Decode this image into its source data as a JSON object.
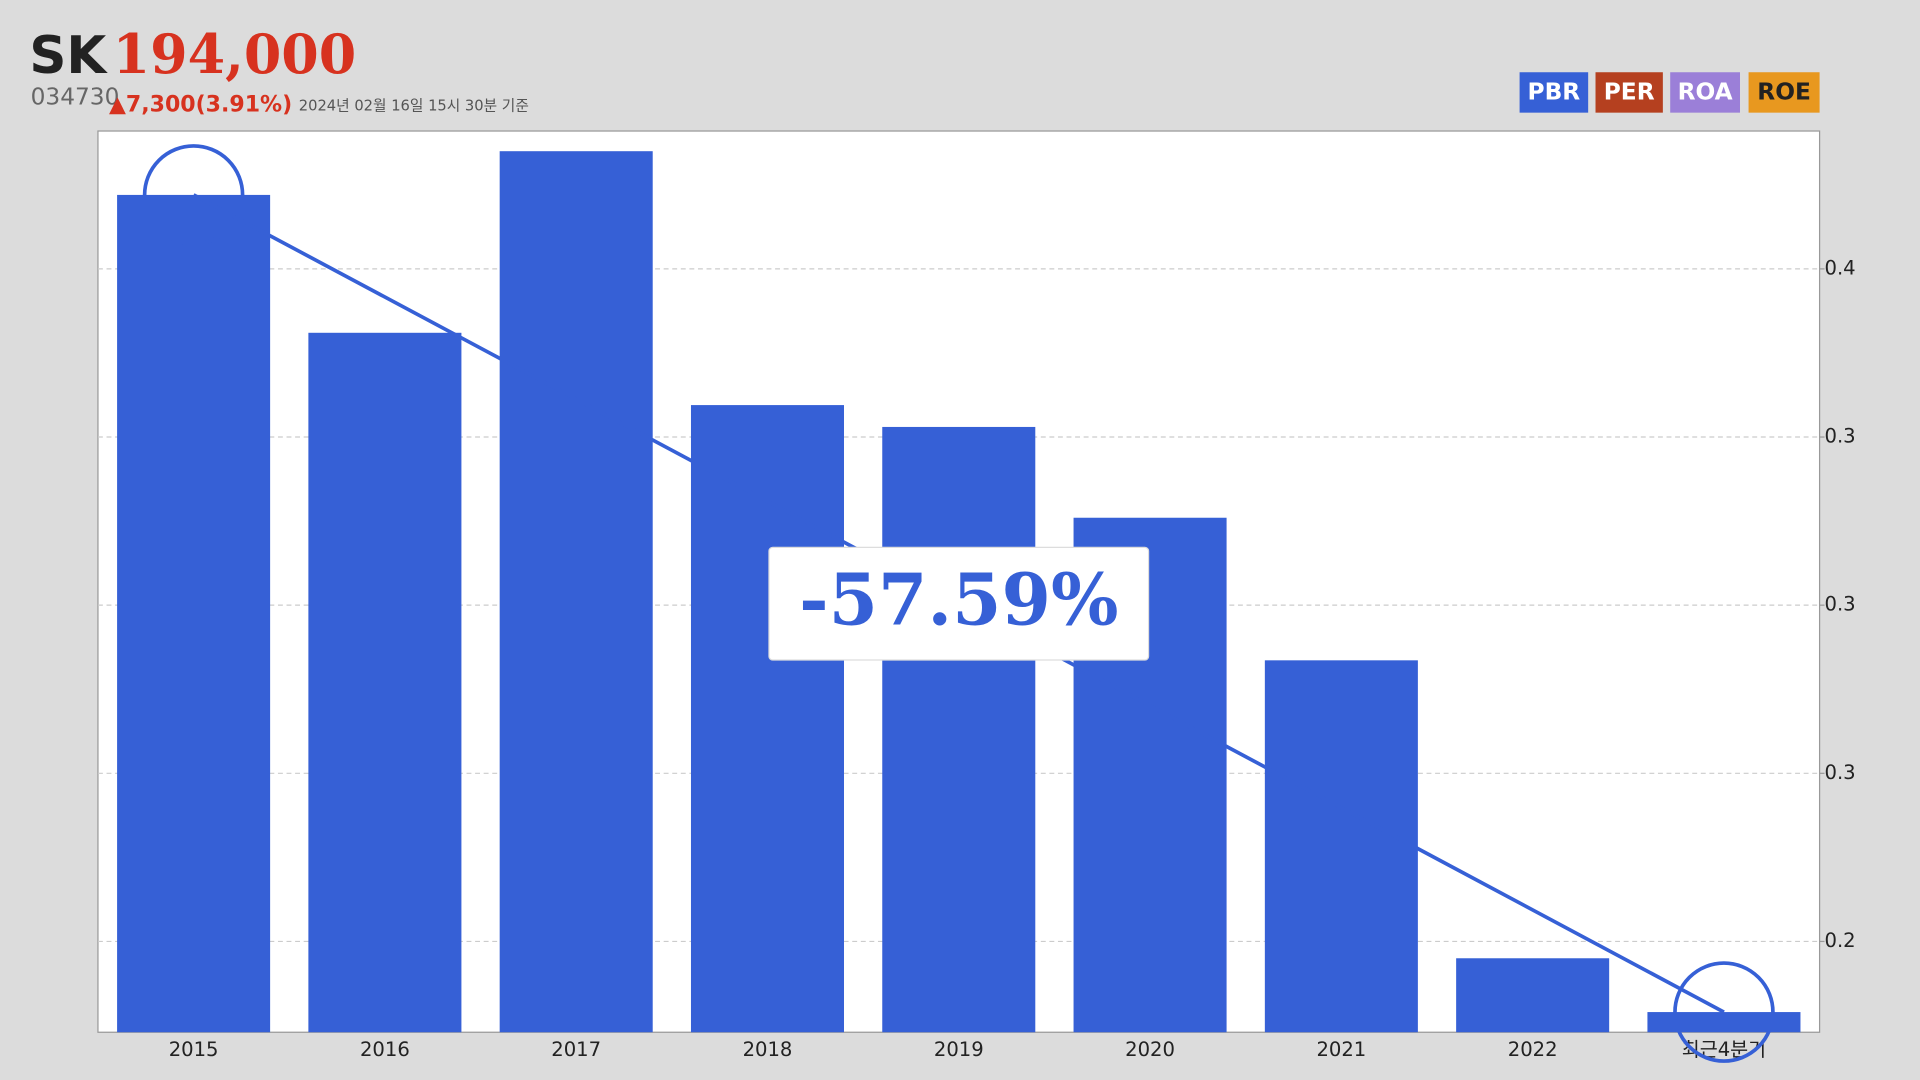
{
  "header": {
    "name": "SK",
    "price": "194,000",
    "code": "034730",
    "change": "▲7,300(3.91%)",
    "timestamp": "2024년 02월 16일 15시 30분 기준"
  },
  "tabs": [
    {
      "label": "PBR",
      "color": "#3660d6"
    },
    {
      "label": "PER",
      "color": "#b5401f"
    },
    {
      "label": "ROA",
      "color": "#9b7fd8"
    },
    {
      "label": "ROE",
      "color": "#e8981f"
    }
  ],
  "chart_data": {
    "type": "bar",
    "categories": [
      "2015",
      "2016",
      "2017",
      "2018",
      "2019",
      "2020",
      "2021",
      "2022",
      "최근4분기"
    ],
    "values": [
      0.422,
      0.381,
      0.435,
      0.3595,
      0.353,
      0.326,
      0.2836,
      0.195,
      0.179
    ],
    "color": "#3660d6",
    "ylim": [
      0.173,
      0.441
    ],
    "yticks": [
      {
        "value": 0.2,
        "label": "0.2"
      },
      {
        "value": 0.25,
        "label": "0.3"
      },
      {
        "value": 0.3,
        "label": "0.3"
      },
      {
        "value": 0.35,
        "label": "0.3"
      },
      {
        "value": 0.4,
        "label": "0.4"
      }
    ],
    "grid": true,
    "annotation": "-57.59%"
  }
}
